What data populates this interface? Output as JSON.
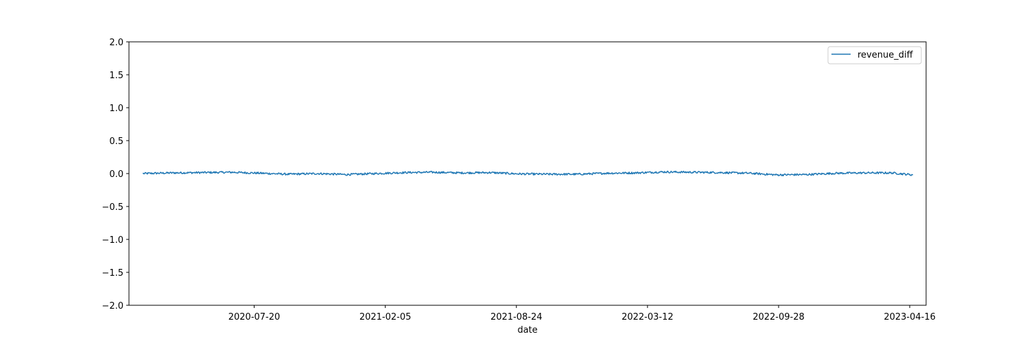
{
  "chart_data": {
    "type": "line",
    "title": "",
    "xlabel": "date",
    "ylabel": "",
    "x_range": [
      "2020-02-01",
      "2023-04-21"
    ],
    "xlim": [
      "2020-01-11",
      "2023-05-11"
    ],
    "ylim": [
      -2.0,
      2.0
    ],
    "x_ticks": [
      "2020-07-20",
      "2021-02-05",
      "2021-08-24",
      "2022-03-12",
      "2022-09-28",
      "2023-04-16"
    ],
    "y_ticks": [
      "−2.0",
      "−1.5",
      "−1.0",
      "−0.5",
      "0.0",
      "0.5",
      "1.0",
      "1.5",
      "2.0"
    ],
    "grid": false,
    "legend": {
      "position": "top-right",
      "entries": [
        "revenue_diff"
      ]
    },
    "series": [
      {
        "name": "revenue_diff",
        "color": "#1f77b4",
        "x": [
          "2020-02-01",
          "2020-03-15",
          "2020-05-01",
          "2020-06-15",
          "2020-07-31",
          "2020-09-10",
          "2020-10-25",
          "2020-12-08",
          "2021-01-20",
          "2021-03-05",
          "2021-04-18",
          "2021-05-31",
          "2021-07-15",
          "2021-08-28",
          "2021-10-10",
          "2021-11-25",
          "2022-01-07",
          "2022-02-20",
          "2022-04-05",
          "2022-05-20",
          "2022-07-03",
          "2022-08-15",
          "2022-09-25",
          "2022-11-10",
          "2022-12-24",
          "2023-02-05",
          "2023-03-20",
          "2023-04-21"
        ],
        "values": [
          0.0,
          0.01,
          0.015,
          0.02,
          0.005,
          -0.01,
          0.0,
          -0.015,
          0.0,
          0.015,
          0.02,
          0.01,
          0.015,
          -0.005,
          -0.01,
          -0.01,
          0.005,
          0.01,
          0.025,
          0.02,
          0.015,
          0.005,
          -0.02,
          -0.015,
          0.005,
          0.01,
          0.01,
          -0.02
        ]
      }
    ]
  }
}
